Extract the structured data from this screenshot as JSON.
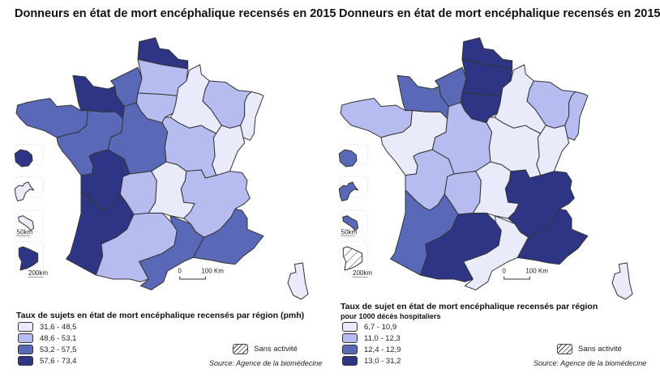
{
  "colors": {
    "class1": "#e9ebfa",
    "class2": "#b6bcf0",
    "class3": "#5a68b8",
    "class4": "#2f3585",
    "hatched": "sans-activite"
  },
  "scale": {
    "zero": "0",
    "main": "100 Km",
    "inset_small": "50km",
    "inset_large": "200km"
  },
  "maps": [
    {
      "title": "Donneurs en état de mort encéphalique recensés en 2015",
      "legend_title": "Taux de sujets en état de mort encéphalique recensés par région (pmh)",
      "legend_subtitle": "",
      "legend": [
        "31,6 - 48,5",
        "48,6 - 53,1",
        "53,2 - 57,5",
        "57,6 - 73,4"
      ],
      "no_activity": "Sans activité",
      "source": "Source: Agence de la biomédecine",
      "region_classes": [
        4,
        2,
        3,
        4,
        3,
        3,
        3,
        4,
        2,
        4,
        2,
        3,
        1,
        2,
        3,
        2,
        1,
        2,
        1,
        1,
        2,
        1
      ],
      "dom_classes": [
        4,
        1,
        1,
        4
      ]
    },
    {
      "title": "Donneurs en état de mort encéphalique recensés en 2015",
      "legend_title": "Taux de sujet en état de mort encéphalique recensés par région",
      "legend_subtitle": "pour 1000 décès hospitaliers",
      "legend": [
        "6,7 - 10,9",
        "11,0 - 12,3",
        "12,4 - 12,9",
        "13,0 - 31,2"
      ],
      "no_activity": "Sans activité",
      "source": "Source: Agence de la biomédecine",
      "region_classes": [
        4,
        4,
        3,
        3,
        2,
        1,
        2,
        2,
        2,
        3,
        4,
        1,
        1,
        4,
        4,
        4,
        1,
        2,
        2,
        1,
        1,
        1
      ],
      "dom_classes": [
        3,
        3,
        3,
        0
      ]
    }
  ]
}
